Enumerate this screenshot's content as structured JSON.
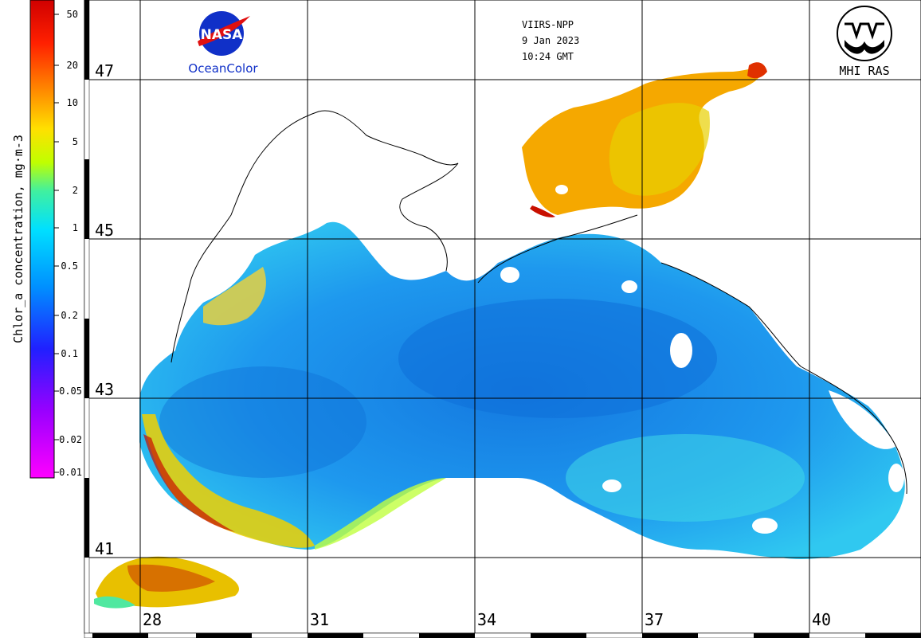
{
  "header": {
    "sensor": "VIIRS-NPP",
    "date": "9 Jan 2023",
    "time": "10:24 GMT"
  },
  "logos": {
    "nasa_text": "NASA",
    "oceancolor_text": "OceanColor",
    "mhi_text": "MHI RAS"
  },
  "colorbar": {
    "label": "Chlor_a concentration, mg·m-3",
    "ticks": [
      "50",
      "20",
      "10",
      "5",
      "2",
      "1",
      "0.5",
      "0.2",
      "0.1",
      "0.05",
      "0.02",
      "0.01"
    ],
    "colors": [
      "#ff00ff",
      "#9900ff",
      "#2020ff",
      "#0090ff",
      "#00e0ff",
      "#40f0a0",
      "#c0ff00",
      "#ffe000",
      "#ff8000",
      "#ff2000",
      "#d00000"
    ]
  },
  "grid": {
    "lat_labels": [
      "47",
      "45",
      "43",
      "41"
    ],
    "lon_labels": [
      "28",
      "31",
      "34",
      "37",
      "40"
    ]
  },
  "colors": {
    "frame": "#000000",
    "gridline": "#000000",
    "open_sea": "#1ea0f0",
    "deep_blue": "#0f70d8",
    "coastal_green": "#50e8a0",
    "coastal_yellow": "#f0d000",
    "azov_orange": "#f5a800"
  }
}
